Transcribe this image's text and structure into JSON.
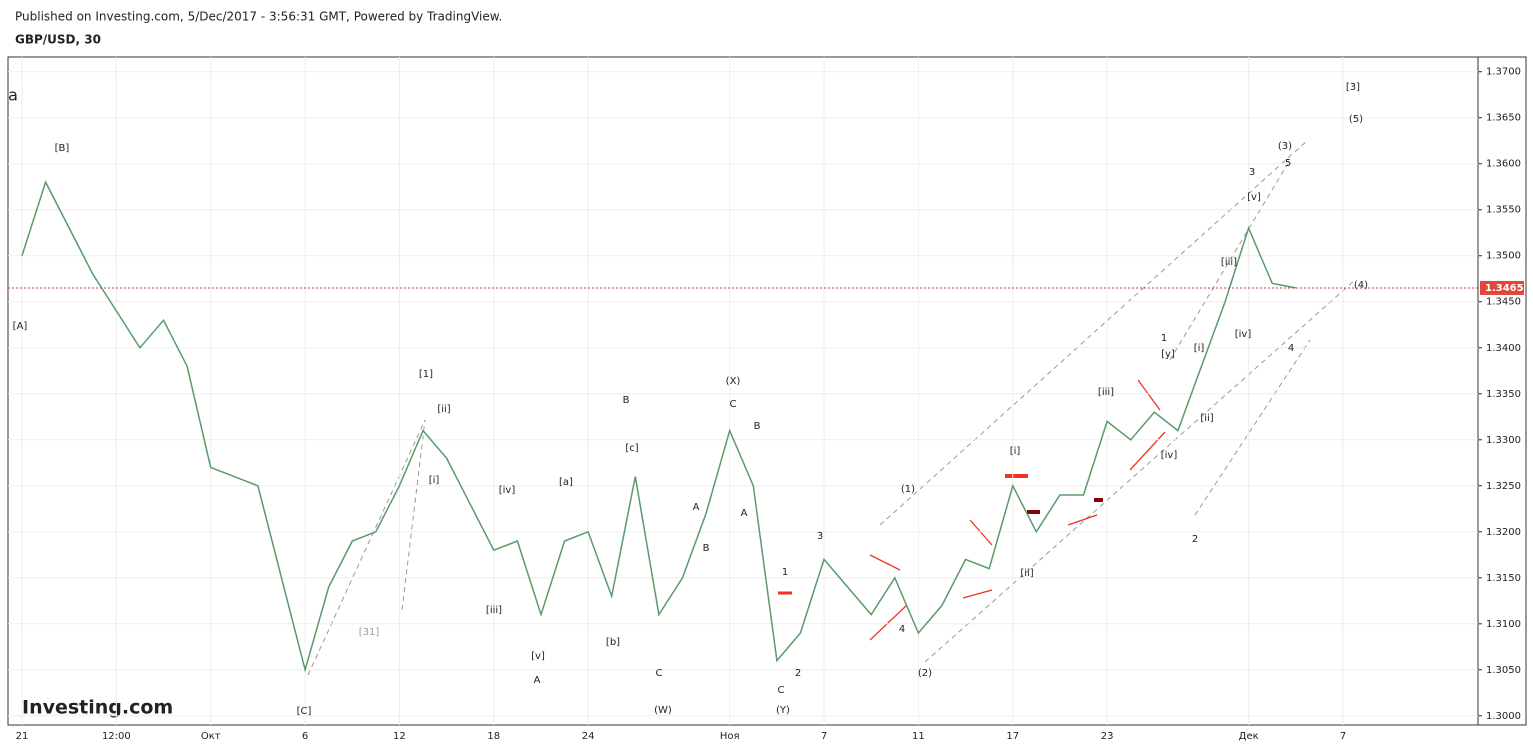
{
  "chart_data": {
    "type": "line",
    "subtitle": "Published on Investing.com, 5/Dec/2017 - 3:56:31 GMT, Powered by TradingView.",
    "title": "GBP/USD, 30",
    "logo": "Investing.com",
    "color": "#5a9a6a",
    "categories": [
      "21",
      null,
      null,
      null,
      "12:00",
      null,
      null,
      null,
      "Окт",
      null,
      null,
      null,
      "6",
      null,
      null,
      null,
      "12",
      null,
      null,
      null,
      "18",
      null,
      null,
      null,
      "24",
      null,
      null,
      null,
      null,
      null,
      "Ноя",
      null,
      null,
      null,
      "7",
      null,
      null,
      null,
      "11",
      null,
      null,
      null,
      "17",
      null,
      null,
      null,
      "23",
      null,
      null,
      null,
      null,
      null,
      "Дек",
      null,
      null,
      null,
      "7"
    ],
    "values": [
      1.35,
      1.358,
      1.353,
      1.348,
      1.344,
      1.34,
      1.343,
      1.338,
      1.327,
      1.326,
      1.325,
      1.315,
      1.305,
      1.314,
      1.319,
      1.32,
      1.325,
      1.331,
      1.328,
      1.323,
      1.318,
      1.319,
      1.311,
      1.319,
      1.32,
      1.313,
      1.326,
      1.311,
      1.315,
      1.322,
      1.331,
      1.325,
      1.306,
      1.309,
      1.317,
      1.314,
      1.311,
      1.315,
      1.309,
      1.312,
      1.317,
      1.316,
      1.325,
      1.32,
      1.324,
      1.324,
      1.332,
      1.33,
      1.333,
      1.331,
      1.338,
      1.345,
      1.353,
      1.347,
      1.3465,
      null,
      null
    ],
    "last_price": 1.3465,
    "ylim": [
      1.299,
      1.3716
    ],
    "yticks": [
      {
        "value": 1.3,
        "label": "1.3000"
      },
      {
        "value": 1.305,
        "label": "1.3050"
      },
      {
        "value": 1.31,
        "label": "1.3100"
      },
      {
        "value": 1.315,
        "label": "1.3150"
      },
      {
        "value": 1.32,
        "label": "1.3200"
      },
      {
        "value": 1.325,
        "label": "1.3250"
      },
      {
        "value": 1.33,
        "label": "1.3300"
      },
      {
        "value": 1.335,
        "label": "1.3350"
      },
      {
        "value": 1.34,
        "label": "1.3400"
      },
      {
        "value": 1.345,
        "label": "1.3450"
      },
      {
        "value": 1.35,
        "label": "1.3500"
      },
      {
        "value": 1.355,
        "label": "1.3550"
      },
      {
        "value": 1.36,
        "label": "1.3600"
      },
      {
        "value": 1.365,
        "label": "1.3650"
      },
      {
        "value": 1.37,
        "label": "1.3700"
      }
    ],
    "grid": true,
    "annotations": [
      "a",
      "[B]",
      "[A]",
      "[1]",
      "[ii]",
      "[i]",
      "[C]",
      "[31]",
      "[iv]",
      "[iii]",
      "[v]",
      "A",
      "[a]",
      "B",
      "[c]",
      "[b]",
      "C",
      "(W)",
      "(X)",
      "C",
      "B",
      "A",
      "B",
      "A",
      "1",
      "2",
      "C",
      "(Y)",
      "3",
      "4",
      "(1)",
      "(2)",
      "[i]",
      "[ii]",
      "[iii]",
      "[iv]",
      "1",
      "[y]",
      "[ii]",
      "[i]",
      "[iv]",
      "[iii]",
      "[v]",
      "3",
      "(3)",
      "5",
      "4",
      "2",
      "(4)",
      "[3]",
      "(5)"
    ]
  }
}
